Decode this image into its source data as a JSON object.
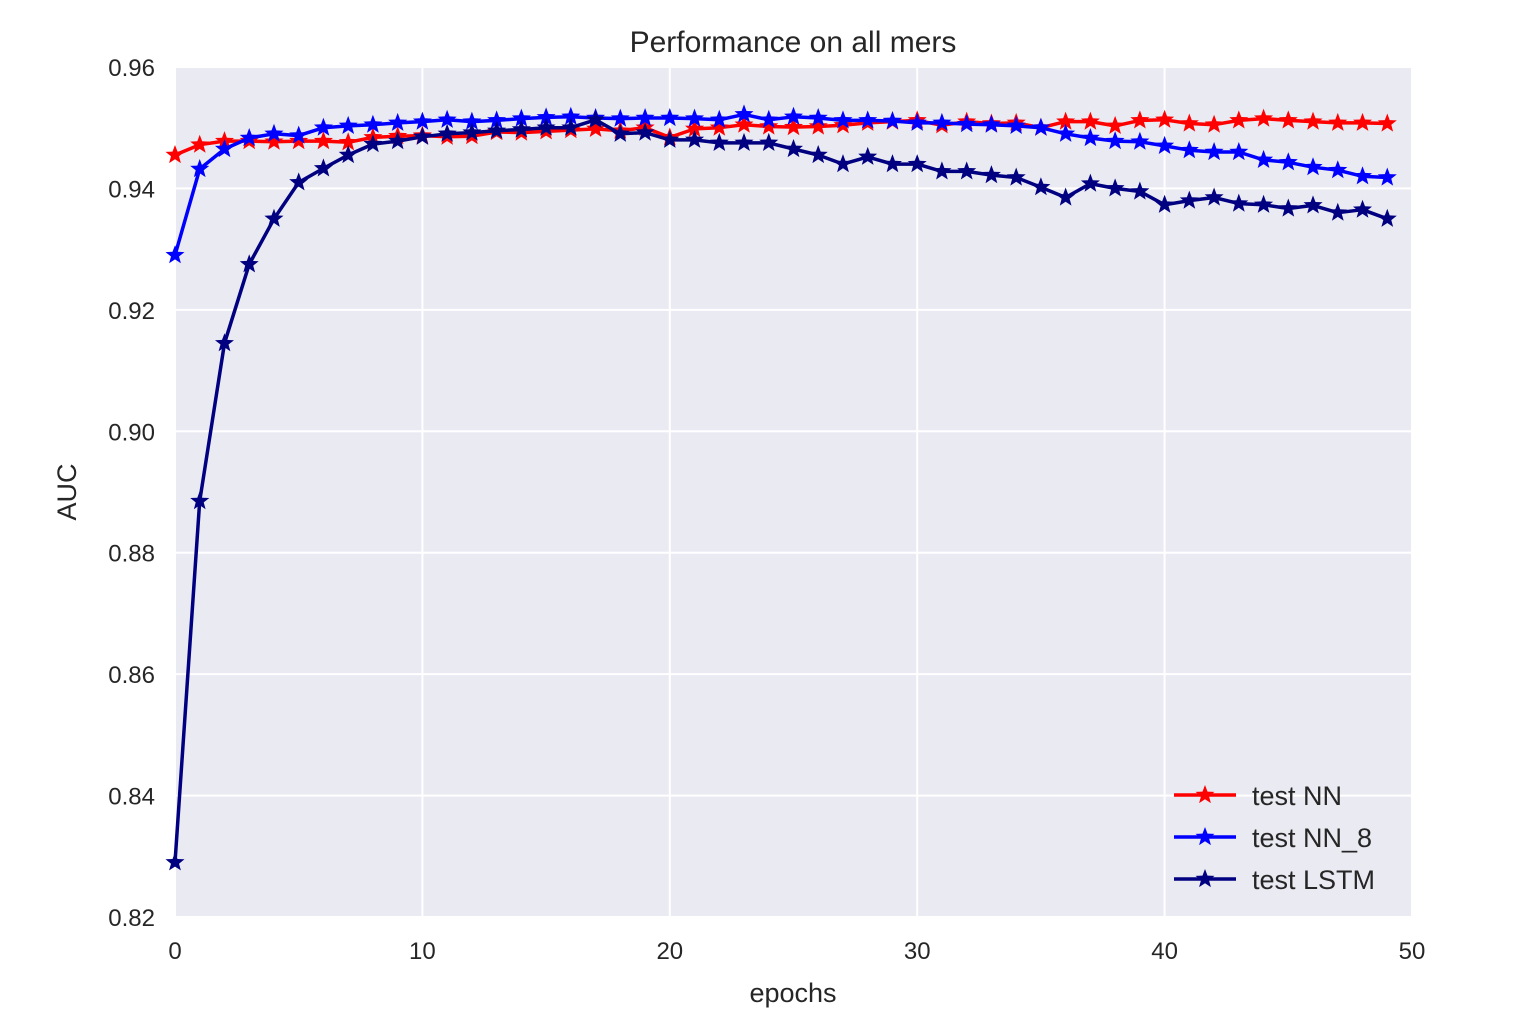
{
  "chart_data": {
    "type": "line",
    "title": "Performance on all mers",
    "xlabel": "epochs",
    "ylabel": "AUC",
    "xlim": [
      0,
      50
    ],
    "ylim": [
      0.82,
      0.96
    ],
    "xticks": [
      "0",
      "10",
      "20",
      "30",
      "40",
      "50"
    ],
    "yticks": [
      "0.82",
      "0.84",
      "0.86",
      "0.88",
      "0.90",
      "0.92",
      "0.94",
      "0.96"
    ],
    "grid": true,
    "legend_position": "lower-right",
    "marker": "star",
    "x": [
      0,
      1,
      2,
      3,
      4,
      5,
      6,
      7,
      8,
      9,
      10,
      11,
      12,
      13,
      14,
      15,
      16,
      17,
      18,
      19,
      20,
      21,
      22,
      23,
      24,
      25,
      26,
      27,
      28,
      29,
      30,
      31,
      32,
      33,
      34,
      35,
      36,
      37,
      38,
      39,
      40,
      41,
      42,
      43,
      44,
      45,
      46,
      47,
      48,
      49
    ],
    "series": [
      {
        "name": "test NN",
        "color": "#ff0000",
        "values": [
          0.9455,
          0.9472,
          0.9478,
          0.9478,
          0.9477,
          0.9478,
          0.9478,
          0.9476,
          0.9484,
          0.9486,
          0.9487,
          0.9485,
          0.9486,
          0.9493,
          0.9492,
          0.9494,
          0.9496,
          0.9498,
          0.9495,
          0.95,
          0.9484,
          0.9498,
          0.95,
          0.9505,
          0.9502,
          0.9501,
          0.9502,
          0.9504,
          0.9508,
          0.951,
          0.9512,
          0.9504,
          0.951,
          0.9507,
          0.9508,
          0.95,
          0.951,
          0.951,
          0.9503,
          0.9512,
          0.9513,
          0.9507,
          0.9505,
          0.9512,
          0.9515,
          0.9512,
          0.951,
          0.9508,
          0.9508,
          0.9507
        ]
      },
      {
        "name": "test NN_8",
        "color": "#0000ff",
        "values": [
          0.929,
          0.9432,
          0.9465,
          0.9483,
          0.949,
          0.9487,
          0.95,
          0.9503,
          0.9505,
          0.9508,
          0.951,
          0.9513,
          0.951,
          0.9512,
          0.9515,
          0.9517,
          0.9518,
          0.9516,
          0.9515,
          0.9516,
          0.9516,
          0.9515,
          0.9513,
          0.9522,
          0.9513,
          0.9518,
          0.9516,
          0.9512,
          0.9512,
          0.9511,
          0.9508,
          0.9508,
          0.9506,
          0.9505,
          0.9503,
          0.95,
          0.949,
          0.9483,
          0.9478,
          0.9477,
          0.947,
          0.9463,
          0.946,
          0.946,
          0.9447,
          0.9443,
          0.9435,
          0.943,
          0.942,
          0.9418
        ]
      },
      {
        "name": "test LSTM",
        "color": "#000080",
        "values": [
          0.829,
          0.8885,
          0.9145,
          0.9275,
          0.935,
          0.941,
          0.9433,
          0.9455,
          0.9473,
          0.9478,
          0.9485,
          0.949,
          0.9492,
          0.9495,
          0.9497,
          0.95,
          0.95,
          0.9513,
          0.949,
          0.9492,
          0.948,
          0.948,
          0.9475,
          0.9475,
          0.9475,
          0.9465,
          0.9455,
          0.944,
          0.9452,
          0.944,
          0.944,
          0.9428,
          0.9428,
          0.9422,
          0.9418,
          0.9402,
          0.9385,
          0.9408,
          0.94,
          0.9395,
          0.9373,
          0.938,
          0.9385,
          0.9375,
          0.9373,
          0.9367,
          0.9372,
          0.936,
          0.9365,
          0.935
        ]
      }
    ]
  }
}
